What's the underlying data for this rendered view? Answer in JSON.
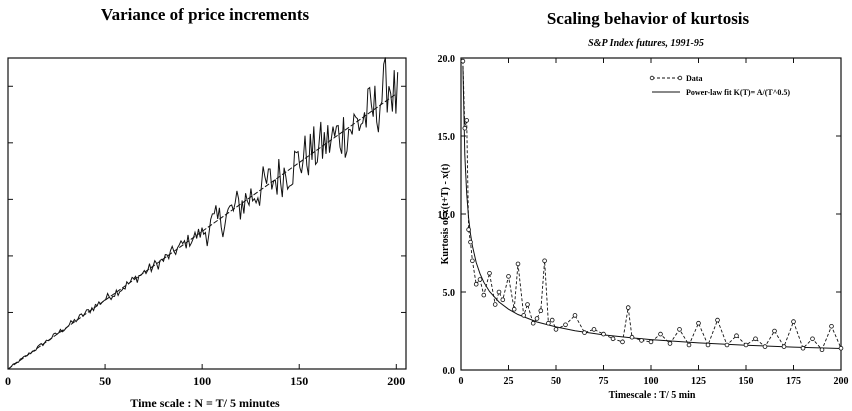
{
  "chart_data": [
    {
      "type": "line",
      "title": "Variance of price increments",
      "xlabel": "Time scale : N = T/ 5 minutes",
      "ylabel": "",
      "xlim": [
        0,
        205
      ],
      "ylim": [
        0,
        1
      ],
      "x_ticks": [
        "0",
        "50",
        "100",
        "150",
        "200"
      ],
      "y_tick_labels_shown": false,
      "series": [
        {
          "style": "noisy-solid",
          "x": [
            0,
            10,
            20,
            30,
            40,
            50,
            60,
            70,
            80,
            90,
            100,
            110,
            120,
            130,
            140,
            150,
            160,
            170,
            180,
            190,
            196,
            200
          ],
          "values": [
            0.0,
            0.045,
            0.09,
            0.135,
            0.18,
            0.225,
            0.265,
            0.31,
            0.35,
            0.4,
            0.44,
            0.48,
            0.53,
            0.58,
            0.62,
            0.67,
            0.71,
            0.75,
            0.79,
            0.84,
            0.93,
            0.86
          ]
        },
        {
          "style": "fit-dashed",
          "x": [
            0,
            200
          ],
          "values": [
            0.0,
            0.885
          ]
        }
      ]
    },
    {
      "type": "line",
      "title": "Scaling behavior of kurtosis",
      "subtitle": "S&P Index futures, 1991-95",
      "xlabel": "Timescale : T/ 5 min",
      "ylabel": "Kurtosis of  x(t+T) - x(t)",
      "xlim": [
        0,
        200
      ],
      "ylim": [
        0,
        20
      ],
      "x_ticks": [
        "0",
        "25",
        "50",
        "75",
        "100",
        "125",
        "150",
        "175",
        "200"
      ],
      "y_ticks": [
        "0.0",
        "5.0",
        "10.0",
        "15.0",
        "20.0"
      ],
      "legend": {
        "placement": "top-right",
        "entries": [
          "Data",
          "Power-law fit K(T)= A/(T^0.5)"
        ]
      },
      "series": [
        {
          "name": "Data",
          "style": "dashed-with-circles",
          "x": [
            1,
            2,
            3,
            4,
            5,
            6,
            8,
            10,
            12,
            15,
            18,
            20,
            22,
            25,
            28,
            30,
            33,
            35,
            38,
            40,
            42,
            44,
            46,
            48,
            50,
            55,
            60,
            65,
            70,
            75,
            80,
            85,
            88,
            90,
            95,
            100,
            105,
            110,
            115,
            120,
            125,
            130,
            135,
            140,
            145,
            150,
            155,
            160,
            165,
            170,
            175,
            180,
            185,
            190,
            195,
            200
          ],
          "values": [
            19.8,
            15.5,
            16.0,
            9.0,
            8.2,
            7.0,
            5.5,
            5.8,
            4.8,
            6.2,
            4.2,
            5.0,
            4.5,
            6.0,
            3.9,
            6.8,
            3.5,
            4.2,
            3.0,
            3.3,
            3.8,
            7.0,
            3.0,
            3.2,
            2.6,
            2.9,
            3.5,
            2.4,
            2.6,
            2.3,
            2.0,
            1.8,
            4.0,
            2.1,
            1.9,
            1.8,
            2.3,
            1.7,
            2.6,
            1.6,
            3.0,
            1.6,
            3.2,
            1.6,
            2.2,
            1.6,
            2.0,
            1.5,
            2.5,
            1.5,
            3.1,
            1.4,
            2.0,
            1.3,
            2.8,
            1.4
          ]
        },
        {
          "name": "Power-law fit K(T)= A/(T^0.5)",
          "style": "solid",
          "x": [
            1,
            2,
            3,
            4,
            5,
            6,
            8,
            10,
            12,
            15,
            20,
            25,
            30,
            40,
            50,
            60,
            75,
            90,
            100,
            125,
            150,
            175,
            200
          ],
          "values": [
            19.5,
            13.8,
            11.3,
            9.75,
            8.72,
            7.96,
            6.89,
            6.17,
            5.63,
            5.03,
            4.36,
            3.9,
            3.56,
            3.08,
            2.76,
            2.52,
            2.25,
            2.06,
            1.95,
            1.74,
            1.59,
            1.47,
            1.38
          ]
        }
      ]
    }
  ]
}
